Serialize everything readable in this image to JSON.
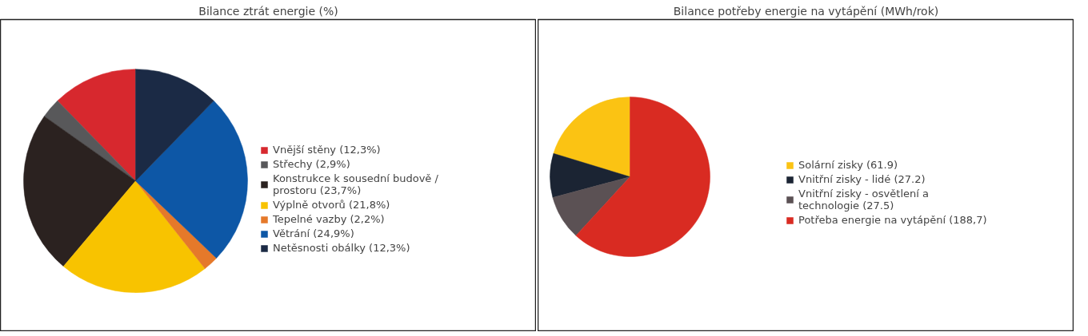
{
  "chart_data": [
    {
      "type": "pie",
      "title": "Bilance ztrát energie (%)",
      "legend": "right",
      "categories": [
        "Vnější stěny",
        "Střechy",
        "Konstrukce k sousední budově / prostoru",
        "Výplně otvorů",
        "Tepelné vazby",
        "Větrání",
        "Netěsnosti obálky"
      ],
      "values": [
        12.3,
        2.9,
        23.7,
        21.8,
        2.2,
        24.9,
        12.3
      ],
      "value_labels": [
        "(12,3%)",
        "(2,9%)",
        "(23,7%)",
        "(21,8%)",
        "(2,2%)",
        "(24,9%)",
        "(12,3%)"
      ],
      "colors": [
        "#d7282e",
        "#58585a",
        "#2b2220",
        "#f8c300",
        "#e5792a",
        "#0d57a6",
        "#1b2a45"
      ]
    },
    {
      "type": "pie",
      "title": "Bilance potřeby energie na vytápění (MWh/rok)",
      "legend": "right",
      "categories": [
        "Solární zisky",
        "Vnitřní zisky - lidé",
        "Vnitřní zisky - osvětlení a technologie",
        "Potřeba energie na vytápění"
      ],
      "values": [
        61.9,
        27.2,
        27.5,
        188.7
      ],
      "value_labels": [
        "(61.9)",
        "(27.2)",
        "(27.5)",
        "(188,7)"
      ],
      "colors": [
        "#fbc313",
        "#1b2433",
        "#5b5154",
        "#d92b22"
      ]
    }
  ]
}
